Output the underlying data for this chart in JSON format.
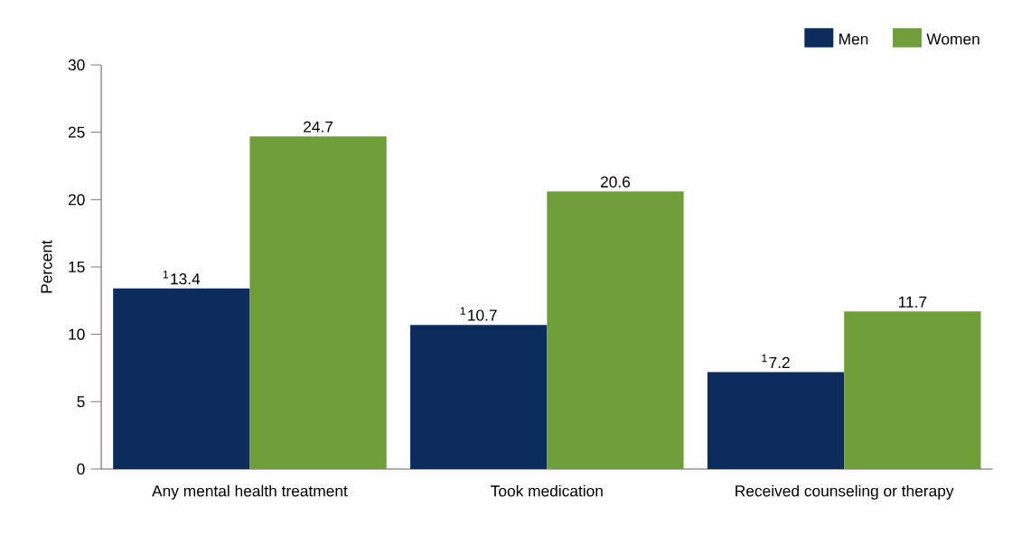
{
  "chart_data": {
    "type": "bar",
    "ylabel": "Percent",
    "categories": [
      "Any mental health treatment",
      "Took medication",
      "Received counseling or therapy"
    ],
    "series": [
      {
        "name": "Men",
        "color": "#0d2c5e",
        "values": [
          13.4,
          10.7,
          7.2
        ],
        "value_labels": [
          "$^{1}$13.4",
          "$^{1}$10.7",
          "$^{1}$7.2"
        ]
      },
      {
        "name": "Women",
        "color": "#6f9e38",
        "values": [
          24.7,
          20.6,
          11.7
        ],
        "value_labels": [
          "24.7",
          "20.6",
          "11.7"
        ]
      }
    ],
    "ylim": [
      0,
      30
    ],
    "yticks": [
      0,
      5,
      10,
      15,
      20,
      25,
      30
    ],
    "legend": "top right"
  }
}
